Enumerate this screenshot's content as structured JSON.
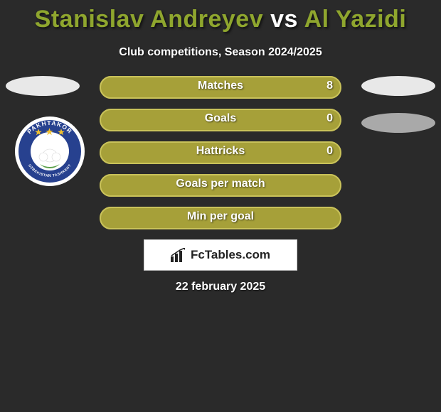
{
  "background_color": "#2a2a2a",
  "title": {
    "player1": "Stanislav Andreyev",
    "vs": "vs",
    "player2": "Al Yazidi",
    "player_color": "#8fa62e",
    "vs_color": "#ffffff",
    "fontsize": 34
  },
  "subtitle": "Club competitions, Season 2024/2025",
  "placeholders": {
    "oval_color_light": "#e8e8e8",
    "oval_color_dark": "#a9a9a9"
  },
  "club_badge": {
    "outer_ring": "#ffffff",
    "inner_ring": "#27418f",
    "star_color": "#f2c230",
    "cotton_color": "#ffffff",
    "leaf_color": "#5aa048",
    "text_top": "PAKHTAKOR",
    "text_bottom": "UZBEKISTAN TASHKENT"
  },
  "bars": {
    "fill_color": "#a6a039",
    "fill_border": "#c9c25a",
    "outline_color": "#a6a039",
    "label_color": "#ffffff",
    "label_fontsize": 16,
    "rows": [
      {
        "label": "Matches",
        "left_value": "",
        "right_value": "8",
        "left_pct": 100
      },
      {
        "label": "Goals",
        "left_value": "",
        "right_value": "0",
        "left_pct": 100
      },
      {
        "label": "Hattricks",
        "left_value": "",
        "right_value": "0",
        "left_pct": 100
      },
      {
        "label": "Goals per match",
        "left_value": "",
        "right_value": "",
        "left_pct": 100
      },
      {
        "label": "Min per goal",
        "left_value": "",
        "right_value": "",
        "left_pct": 100
      }
    ]
  },
  "site_logo": {
    "text": "FcTables.com",
    "icon_color": "#222222"
  },
  "date": "22 february 2025"
}
